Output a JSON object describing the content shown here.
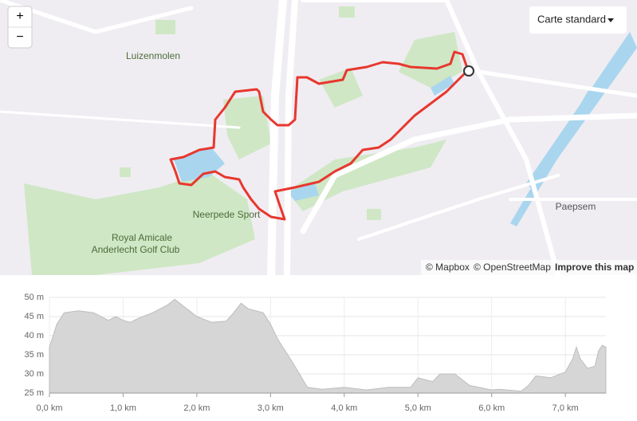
{
  "map": {
    "style_selector": "Carte standard",
    "zoom_in": "+",
    "zoom_out": "−",
    "place_labels": [
      "Luizenmolen",
      "Neerpede Sport",
      "Paepsem"
    ],
    "golf_label": [
      "Royal Amicale",
      "Anderlecht Golf Club"
    ],
    "attribution": {
      "mapbox": "© Mapbox",
      "osm": "© OpenStreetMap",
      "improve": "Improve this map"
    }
  },
  "chart_data": {
    "type": "area",
    "color": "#d6d6d6",
    "grid": true,
    "x": [
      0,
      0.1,
      0.2,
      0.4,
      0.6,
      0.8,
      0.9,
      1.0,
      1.1,
      1.2,
      1.4,
      1.6,
      1.7,
      1.8,
      1.9,
      2.0,
      2.2,
      2.4,
      2.5,
      2.6,
      2.7,
      2.9,
      3.0,
      3.1,
      3.3,
      3.5,
      3.7,
      4.0,
      4.3,
      4.6,
      4.9,
      5.0,
      5.2,
      5.3,
      5.5,
      5.7,
      6.0,
      6.1,
      6.4,
      6.5,
      6.6,
      6.8,
      7.0,
      7.1,
      7.15,
      7.2,
      7.3,
      7.4,
      7.45,
      7.5,
      7.55
    ],
    "values": [
      37,
      43,
      46,
      46.5,
      46,
      44,
      45,
      44,
      43.5,
      44.5,
      46,
      48,
      49.5,
      48,
      46.5,
      45,
      43.5,
      43.8,
      46,
      48.5,
      47,
      46,
      43,
      39,
      33,
      26.5,
      26,
      26.5,
      25.8,
      26.5,
      26.5,
      29,
      28,
      30,
      30,
      27,
      25.8,
      26,
      25.5,
      27,
      29.5,
      29,
      30.5,
      34,
      37,
      34,
      31.5,
      32,
      36,
      37.5,
      37
    ],
    "xlim": [
      0,
      7.55
    ],
    "ylim": [
      25,
      50
    ],
    "xticks": [
      {
        "value": 0,
        "label": "0,0 km"
      },
      {
        "value": 1,
        "label": "1,0 km"
      },
      {
        "value": 2,
        "label": "2,0 km"
      },
      {
        "value": 3,
        "label": "3,0 km"
      },
      {
        "value": 4,
        "label": "4,0 km"
      },
      {
        "value": 5,
        "label": "5,0 km"
      },
      {
        "value": 6,
        "label": "6,0 km"
      },
      {
        "value": 7,
        "label": "7,0 km"
      }
    ],
    "yticks": [
      {
        "value": 25,
        "label": "25 m"
      },
      {
        "value": 30,
        "label": "30 m"
      },
      {
        "value": 35,
        "label": "35 m"
      },
      {
        "value": 40,
        "label": "40 m"
      },
      {
        "value": 45,
        "label": "45 m"
      },
      {
        "value": 50,
        "label": "50 m"
      }
    ]
  }
}
